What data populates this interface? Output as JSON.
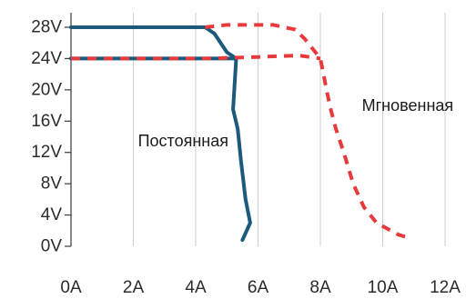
{
  "chart_data": {
    "type": "line",
    "title": "",
    "xlabel": "",
    "ylabel": "",
    "xlim": [
      0,
      12
    ],
    "ylim": [
      0,
      28
    ],
    "x_ticks": [
      0,
      2,
      4,
      6,
      8,
      10,
      12
    ],
    "x_tick_labels": [
      "0A",
      "2A",
      "4A",
      "6A",
      "8A",
      "10A",
      "12A"
    ],
    "y_ticks": [
      0,
      4,
      8,
      12,
      16,
      20,
      24,
      28
    ],
    "y_tick_labels": [
      "0V",
      "4V",
      "8V",
      "12V",
      "16V",
      "20V",
      "24V",
      "28V"
    ],
    "grid": {
      "vertical": true,
      "horizontal": false
    },
    "series": [
      {
        "style": "solid",
        "color": "#1b5a7a",
        "points": [
          [
            0,
            28
          ],
          [
            4.3,
            28
          ],
          [
            4.6,
            27.2
          ],
          [
            5.0,
            24.8
          ],
          [
            5.3,
            24
          ],
          [
            5.2,
            17.5
          ],
          [
            5.35,
            15
          ],
          [
            5.45,
            11
          ],
          [
            5.6,
            6
          ],
          [
            5.75,
            3
          ],
          [
            5.5,
            0.8
          ]
        ]
      },
      {
        "style": "solid",
        "color": "#1b5a7a",
        "points": [
          [
            0,
            24
          ],
          [
            5.3,
            24
          ]
        ]
      },
      {
        "style": "dashed",
        "color": "#e83a3a",
        "points": [
          [
            4.3,
            28
          ],
          [
            5.0,
            28.3
          ],
          [
            6.5,
            28.3
          ],
          [
            7.2,
            27.7
          ],
          [
            7.5,
            26.5
          ],
          [
            7.8,
            25
          ],
          [
            8.0,
            24
          ],
          [
            8.15,
            21
          ],
          [
            8.3,
            18
          ],
          [
            8.5,
            15
          ],
          [
            8.75,
            12
          ],
          [
            9.05,
            8
          ],
          [
            9.4,
            5
          ],
          [
            9.8,
            3
          ],
          [
            10.5,
            1.5
          ],
          [
            10.9,
            1
          ]
        ]
      },
      {
        "style": "dashed",
        "color": "#e83a3a",
        "points": [
          [
            0,
            24
          ],
          [
            4.3,
            24
          ],
          [
            6.0,
            24.2
          ],
          [
            7.3,
            24.4
          ],
          [
            8.0,
            24
          ]
        ]
      }
    ],
    "annotations": [
      {
        "text": "Постоянная",
        "x": 3.6,
        "y": 13.5
      },
      {
        "text": "Мгновенная",
        "x": 10.8,
        "y": 18
      }
    ]
  }
}
